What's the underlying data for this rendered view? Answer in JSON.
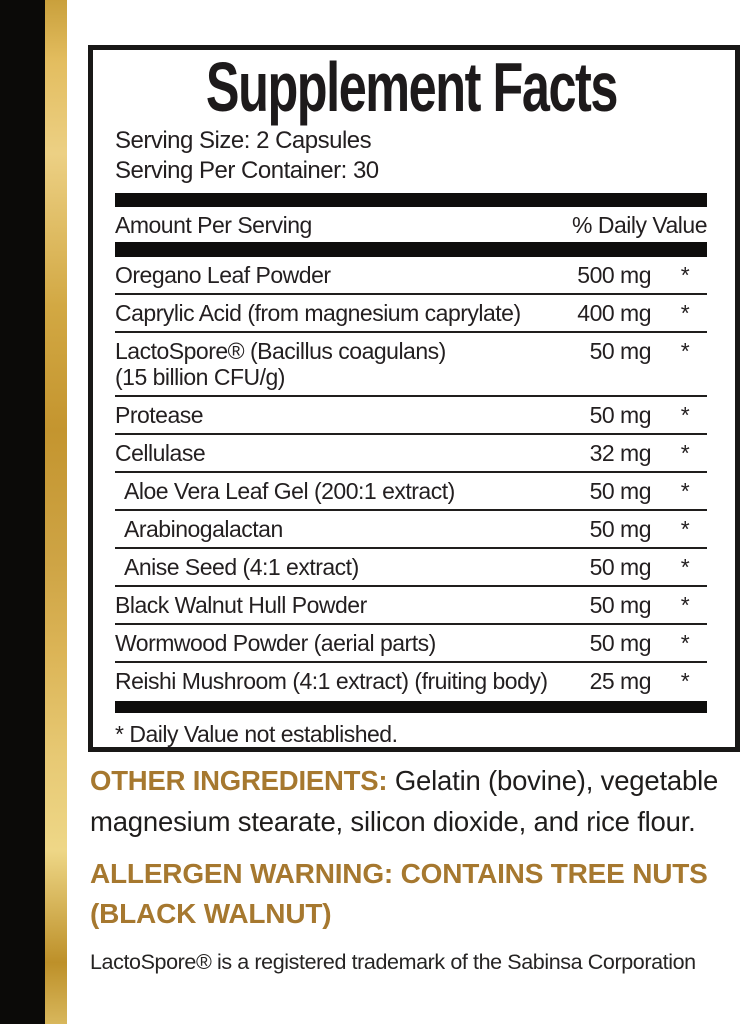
{
  "colors": {
    "accent_gold_text": "#a6782f",
    "stripe_gold_light": "#eed787",
    "stripe_gold_dark": "#bd9029",
    "stripe_black": "#0b0a08",
    "label_black": "#231f20"
  },
  "panel": {
    "title": "Supplement Facts",
    "serving_size": "Serving Size: 2 Capsules",
    "servings_per_container": "Serving Per Container: 30",
    "col_left": "Amount Per Serving",
    "col_right": "% Daily Value",
    "rows": [
      {
        "name": "Oregano Leaf Powder",
        "amount": "500 mg",
        "dv": "*"
      },
      {
        "name": "Caprylic Acid (from magnesium caprylate)",
        "amount": "400 mg",
        "dv": "*"
      },
      {
        "name": "LactoSpore® (Bacillus coagulans)",
        "line2": "(15 billion CFU/g)",
        "amount": "50 mg",
        "dv": "*"
      },
      {
        "name": "Protease",
        "amount": "50 mg",
        "dv": "*"
      },
      {
        "name": "Cellulase",
        "amount": "32 mg",
        "dv": "*"
      },
      {
        "name": "Aloe Vera Leaf Gel (200:1 extract)",
        "amount": "50 mg",
        "dv": "*",
        "indent": true
      },
      {
        "name": "Arabinogalactan",
        "amount": "50 mg",
        "dv": "*",
        "indent": true
      },
      {
        "name": "Anise Seed (4:1 extract)",
        "amount": "50 mg",
        "dv": "*",
        "indent": true
      },
      {
        "name": "Black Walnut Hull Powder",
        "amount": "50 mg",
        "dv": "*"
      },
      {
        "name": "Wormwood Powder (aerial parts)",
        "amount": "50 mg",
        "dv": "*"
      },
      {
        "name": "Reishi Mushroom (4:1 extract) (fruiting body)",
        "amount": "25 mg",
        "dv": "*"
      }
    ],
    "footnote": "* Daily Value not established."
  },
  "other_ingredients": {
    "label": "OTHER INGREDIENTS:",
    "text": "Gelatin (bovine), vegetable magnesium stearate, silicon dioxide, and rice flour."
  },
  "allergen": {
    "label": "ALLERGEN WARNING:",
    "text": "CONTAINS TREE NUTS (BLACK WALNUT)"
  },
  "trademark": "LactoSpore® is a registered trademark of the Sabinsa Corporation"
}
